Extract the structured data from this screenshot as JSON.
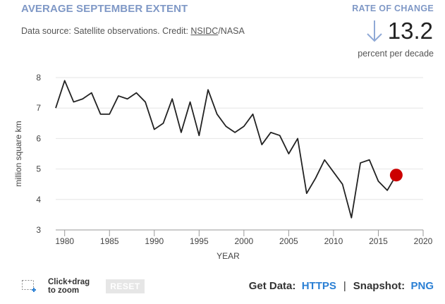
{
  "header": {
    "title": "AVERAGE SEPTEMBER EXTENT",
    "source_prefix": "Data source: Satellite observations. Credit: ",
    "source_link": "NSIDC",
    "source_suffix": "/NASA"
  },
  "rate_of_change": {
    "label": "RATE OF CHANGE",
    "value": "13.2",
    "unit": "percent per decade",
    "direction": "down",
    "arrow_color": "#8fa9d6"
  },
  "chart_data": {
    "type": "line",
    "title": "AVERAGE SEPTEMBER EXTENT",
    "xlabel": "YEAR",
    "ylabel": "million square km",
    "xlim": [
      1979,
      2020
    ],
    "ylim": [
      3,
      8
    ],
    "xticks": [
      1980,
      1985,
      1990,
      1995,
      2000,
      2005,
      2010,
      2015,
      2020
    ],
    "yticks": [
      3,
      4,
      5,
      6,
      7,
      8
    ],
    "grid": "horizontal",
    "x": [
      1979,
      1980,
      1981,
      1982,
      1983,
      1984,
      1985,
      1986,
      1987,
      1988,
      1989,
      1990,
      1991,
      1992,
      1993,
      1994,
      1995,
      1996,
      1997,
      1998,
      1999,
      2000,
      2001,
      2002,
      2003,
      2004,
      2005,
      2006,
      2007,
      2008,
      2009,
      2010,
      2011,
      2012,
      2013,
      2014,
      2015,
      2016,
      2017
    ],
    "values": [
      7.0,
      7.9,
      7.2,
      7.3,
      7.5,
      6.8,
      6.8,
      7.4,
      7.3,
      7.5,
      7.2,
      6.3,
      6.5,
      7.3,
      6.2,
      7.2,
      6.1,
      7.6,
      6.8,
      6.4,
      6.2,
      6.4,
      6.8,
      5.8,
      6.2,
      6.1,
      5.5,
      6.0,
      4.2,
      4.7,
      5.3,
      4.9,
      4.5,
      3.4,
      5.2,
      5.3,
      4.6,
      4.3,
      4.8
    ],
    "highlight": {
      "x": 2017,
      "y": 4.8,
      "color": "#cc0000"
    },
    "line_color": "#222222"
  },
  "controls": {
    "zoom_hint_line1": "Click+drag",
    "zoom_hint_line2": "to zoom",
    "reset_label": "RESET",
    "get_data_label": "Get Data:",
    "get_data_link": "HTTPS",
    "separator": "|",
    "snapshot_label": "Snapshot:",
    "snapshot_link": "PNG",
    "link_color": "#2a7fd4"
  }
}
